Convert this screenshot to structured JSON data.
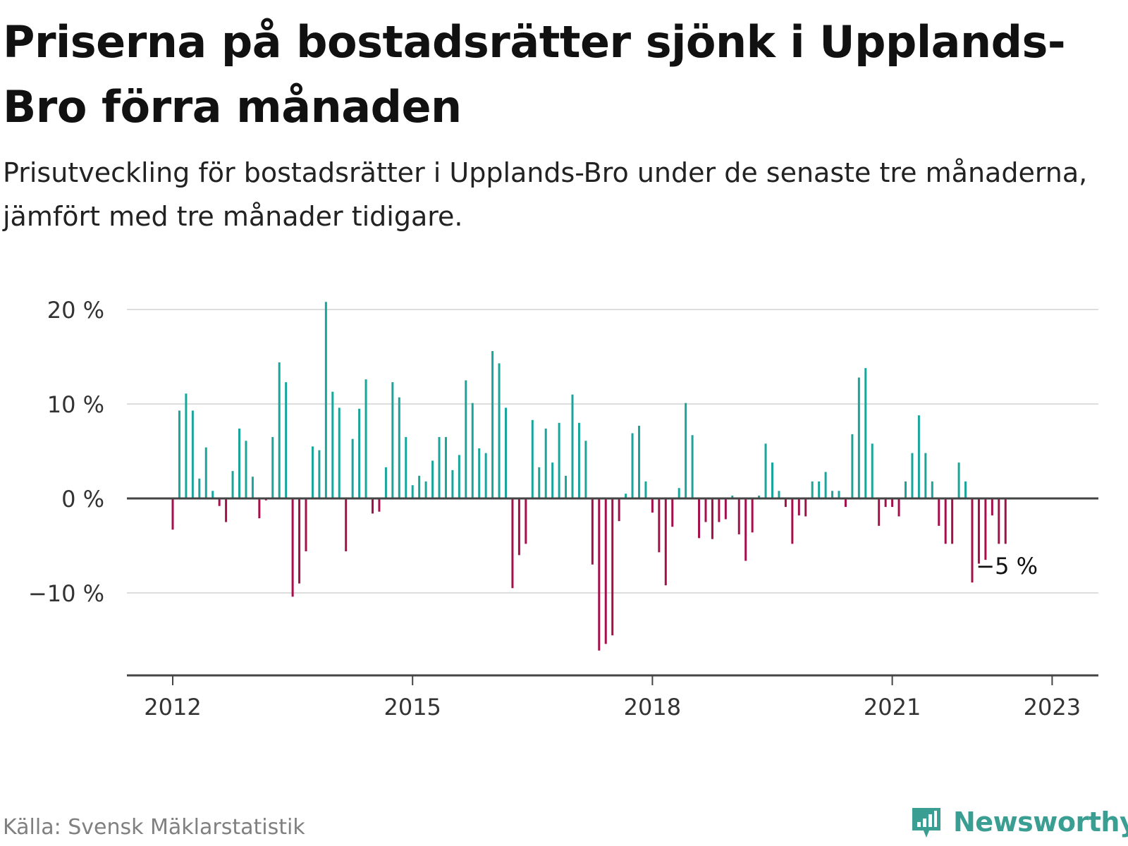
{
  "title": "Priserna på bostadsrätter sjönk i Upplands-Bro förra månaden",
  "subtitle": "Prisutveckling för bostadsrätter i Upplands-Bro under de senaste tre månaderna, jämfört med tre månader tidigare.",
  "source": "Källa: Svensk Mäklarstatistik",
  "brand": "Newsworthy",
  "colors": {
    "positive": "#1aa59b",
    "negative": "#a3104b",
    "grid": "#dddddd",
    "axis": "#444444",
    "brand": "#3a9e92"
  },
  "chart_data": {
    "type": "bar",
    "title": "",
    "xlabel": "",
    "ylabel": "",
    "ylim": [
      -18,
      20
    ],
    "grid": true,
    "yticks": [
      {
        "value": 20,
        "label": "20 %"
      },
      {
        "value": 10,
        "label": "10 %"
      },
      {
        "value": 0,
        "label": "0 %"
      },
      {
        "value": -10,
        "label": "−10 %"
      }
    ],
    "xticks": [
      {
        "month": "2012-01",
        "label": "2012"
      },
      {
        "month": "2015-01",
        "label": "2015"
      },
      {
        "month": "2018-01",
        "label": "2018"
      },
      {
        "month": "2021-01",
        "label": "2021"
      },
      {
        "month": "2023-01",
        "label": "2023"
      }
    ],
    "start_month": "2012-01",
    "unit": "%",
    "values": [
      -3.3,
      9.3,
      11.1,
      9.3,
      2.1,
      5.4,
      0.8,
      -0.8,
      -2.5,
      2.9,
      7.4,
      6.1,
      2.3,
      -2.1,
      -0.2,
      6.5,
      14.4,
      12.3,
      -10.4,
      -9.0,
      -5.6,
      5.5,
      5.1,
      20.8,
      11.3,
      9.6,
      -5.6,
      6.3,
      9.5,
      12.6,
      -1.6,
      -1.4,
      3.3,
      12.3,
      10.7,
      6.5,
      1.4,
      2.4,
      1.8,
      4.0,
      6.5,
      6.5,
      3.0,
      4.6,
      12.5,
      10.1,
      5.3,
      4.8,
      15.6,
      14.3,
      9.6,
      -9.5,
      -6.0,
      -4.8,
      8.3,
      3.3,
      7.4,
      3.8,
      8.0,
      2.4,
      11.0,
      8.0,
      6.1,
      -7.0,
      -16.1,
      -15.4,
      -14.5,
      -2.4,
      0.5,
      6.9,
      7.7,
      1.8,
      -1.5,
      -5.7,
      -9.2,
      -3.0,
      1.1,
      10.1,
      6.7,
      -4.2,
      -2.5,
      -4.3,
      -2.5,
      -2.2,
      0.3,
      -3.8,
      -6.6,
      -3.6,
      0.3,
      5.8,
      3.8,
      0.8,
      -0.9,
      -4.8,
      -1.8,
      -1.9,
      1.8,
      1.8,
      2.8,
      0.8,
      0.8,
      -0.9,
      6.8,
      12.8,
      13.8,
      5.8,
      -2.9,
      -0.9,
      -0.9,
      -1.9,
      1.8,
      4.8,
      8.8,
      4.8,
      1.8,
      -2.9,
      -4.8,
      -4.8,
      3.8,
      1.8,
      -8.9,
      -6.9,
      -6.5,
      -1.8,
      -4.8,
      -4.8
    ],
    "annotation": {
      "label": "−5 %",
      "value": -5
    }
  }
}
